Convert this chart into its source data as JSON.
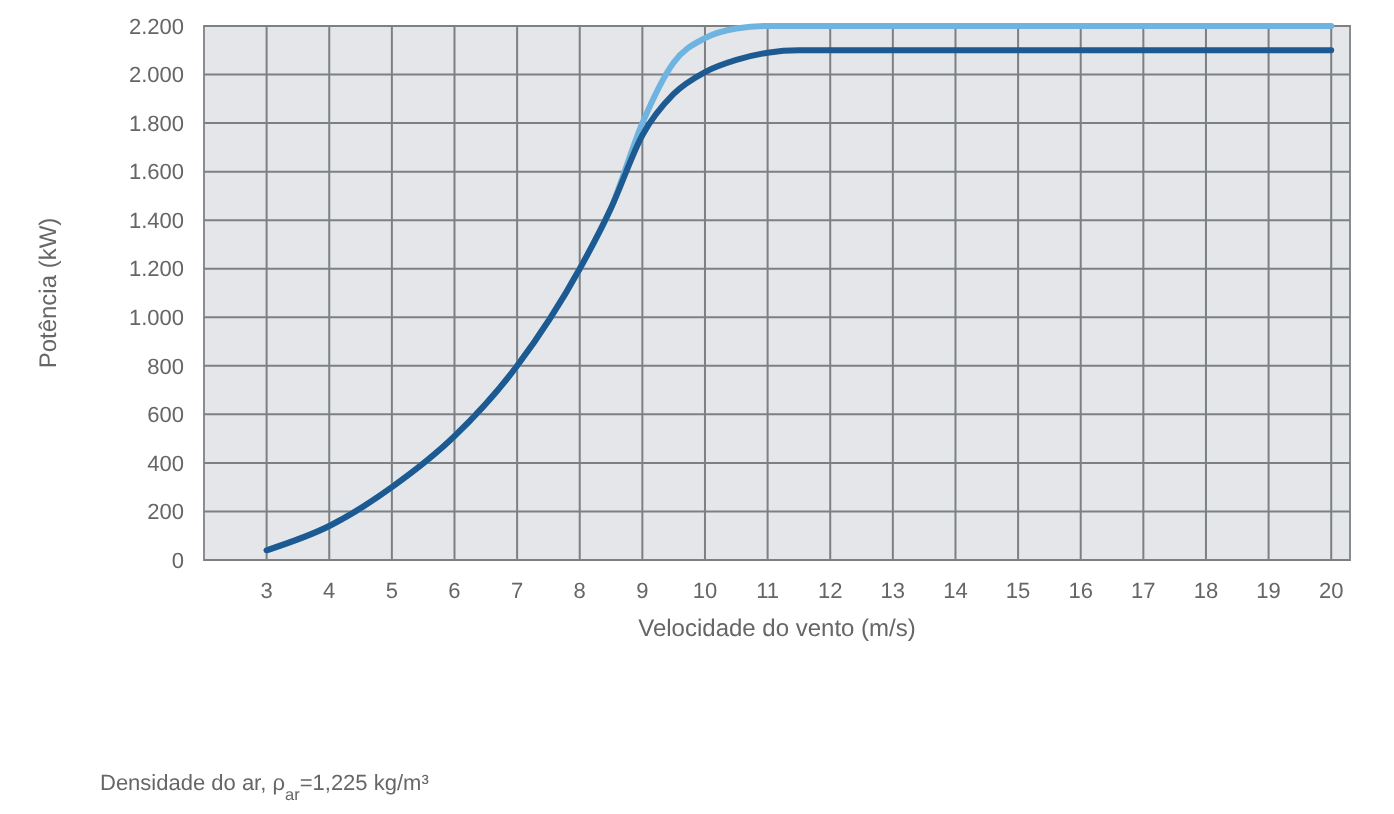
{
  "chart_data": {
    "type": "line",
    "xlabel": "Velocidade do vento (m/s)",
    "ylabel": "Potência (kW)",
    "xlim": [
      2,
      20.3
    ],
    "xticks": [
      3,
      4,
      5,
      6,
      7,
      8,
      9,
      10,
      11,
      12,
      13,
      14,
      15,
      16,
      17,
      18,
      19,
      20
    ],
    "ylim": [
      0,
      2200
    ],
    "yticks": [
      0,
      200,
      400,
      600,
      800,
      {
        "value": 1000,
        "label": "1.000"
      },
      {
        "value": 1200,
        "label": "1.200"
      },
      {
        "value": 1400,
        "label": "1.400"
      },
      {
        "value": 1600,
        "label": "1.600"
      },
      {
        "value": 1800,
        "label": "1.800"
      },
      {
        "value": 2000,
        "label": "2.000"
      },
      {
        "value": 2200,
        "label": "2.200"
      }
    ],
    "grid": true,
    "series": [
      {
        "color": "#6fb3e0",
        "x": [
          3,
          4,
          5,
          6,
          7,
          8,
          8.5,
          9,
          9.5,
          10,
          10.5,
          11,
          11.5,
          20
        ],
        "values": [
          40,
          140,
          300,
          510,
          800,
          1200,
          1450,
          1800,
          2050,
          2150,
          2190,
          2200,
          2200,
          2200
        ]
      },
      {
        "color": "#1d5a91",
        "x": [
          3,
          4,
          5,
          6,
          7,
          8,
          8.5,
          9,
          9.5,
          10,
          10.5,
          11,
          11.5,
          20
        ],
        "values": [
          40,
          140,
          300,
          510,
          800,
          1200,
          1450,
          1750,
          1920,
          2010,
          2060,
          2090,
          2100,
          2100
        ]
      }
    ],
    "annotations": [
      "Densidade do ar, ρ$_{ar}$=1,225 kg/m³"
    ]
  }
}
